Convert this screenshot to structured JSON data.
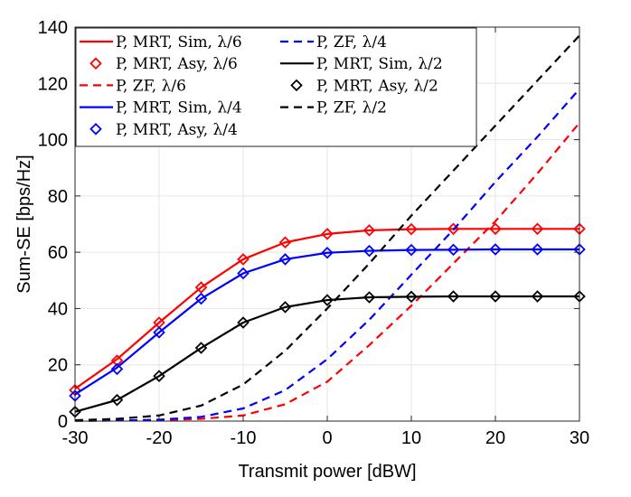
{
  "chart_data": {
    "type": "line",
    "title": "",
    "xlabel": "Transmit power [dBW]",
    "ylabel": "Sum-SE [bps/Hz]",
    "xlim": [
      -30,
      30
    ],
    "ylim": [
      0,
      140
    ],
    "xticks": [
      -30,
      -20,
      -10,
      0,
      10,
      20,
      30
    ],
    "yticks": [
      0,
      20,
      40,
      60,
      80,
      100,
      120,
      140
    ],
    "grid": true,
    "legend_position": "top-left",
    "series": [
      {
        "name": "P, MRT, Sim, λ/6",
        "color": "#ff0000",
        "style": "solid",
        "marker": "none",
        "x": [
          -30,
          -25,
          -20,
          -15,
          -10,
          -5,
          0,
          5,
          10,
          15,
          20,
          25,
          30
        ],
        "y": [
          11.5,
          22,
          35,
          47.5,
          57.5,
          63.5,
          66.5,
          67.8,
          68.2,
          68.3,
          68.3,
          68.3,
          68.3
        ]
      },
      {
        "name": "P, MRT, Asy, λ/6",
        "color": "#ff0000",
        "style": "none",
        "marker": "diamond",
        "x": [
          -30,
          -25,
          -20,
          -15,
          -10,
          -5,
          0,
          5,
          10,
          15,
          20,
          25,
          30
        ],
        "y": [
          11,
          21.5,
          35,
          47.5,
          57.5,
          63.5,
          66.5,
          67.8,
          68.2,
          68.3,
          68.3,
          68.3,
          68.3
        ]
      },
      {
        "name": "P, ZF, λ/6",
        "color": "#ff0000",
        "style": "dashed",
        "marker": "none",
        "x": [
          -30,
          -25,
          -20,
          -15,
          -10,
          -5,
          0,
          5,
          10,
          15,
          20,
          25,
          30
        ],
        "y": [
          0.1,
          0.2,
          0.3,
          0.8,
          2,
          6,
          14,
          27,
          41,
          56,
          71,
          88,
          106
        ]
      },
      {
        "name": "P, MRT, Sim, λ/4",
        "color": "#0000ff",
        "style": "solid",
        "marker": "none",
        "x": [
          -30,
          -25,
          -20,
          -15,
          -10,
          -5,
          0,
          5,
          10,
          15,
          20,
          25,
          30
        ],
        "y": [
          9.5,
          19,
          31.5,
          43.5,
          52.5,
          57.5,
          59.8,
          60.5,
          60.8,
          60.9,
          61,
          61,
          61
        ]
      },
      {
        "name": "P, MRT, Asy, λ/4",
        "color": "#0000ff",
        "style": "none",
        "marker": "diamond",
        "x": [
          -30,
          -25,
          -20,
          -15,
          -10,
          -5,
          0,
          5,
          10,
          15,
          20,
          25,
          30
        ],
        "y": [
          9,
          18.5,
          31.5,
          43.5,
          52.5,
          57.5,
          59.8,
          60.5,
          60.8,
          60.9,
          61,
          61,
          61
        ]
      },
      {
        "name": "P, ZF, λ/4",
        "color": "#0000ff",
        "style": "dashed",
        "marker": "none",
        "x": [
          -30,
          -25,
          -20,
          -15,
          -10,
          -5,
          0,
          5,
          10,
          15,
          20,
          25,
          30
        ],
        "y": [
          0.1,
          0.2,
          0.5,
          1.5,
          4.5,
          11,
          22,
          36,
          52,
          68,
          85,
          101,
          118
        ]
      },
      {
        "name": "P, MRT, Sim, λ/2",
        "color": "#000000",
        "style": "solid",
        "marker": "none",
        "x": [
          -30,
          -25,
          -20,
          -15,
          -10,
          -5,
          0,
          5,
          10,
          15,
          20,
          25,
          30
        ],
        "y": [
          3.3,
          7.5,
          16,
          26,
          35,
          40.5,
          43,
          44,
          44.2,
          44.3,
          44.3,
          44.3,
          44.3
        ]
      },
      {
        "name": "P, MRT, Asy, λ/2",
        "color": "#000000",
        "style": "none",
        "marker": "diamond",
        "x": [
          -30,
          -25,
          -20,
          -15,
          -10,
          -5,
          0,
          5,
          10,
          15,
          20,
          25,
          30
        ],
        "y": [
          3.3,
          7.5,
          16,
          26,
          35,
          40.5,
          43,
          44,
          44.2,
          44.3,
          44.3,
          44.3,
          44.3
        ]
      },
      {
        "name": "P, ZF, λ/2",
        "color": "#000000",
        "style": "dashed",
        "marker": "none",
        "x": [
          -30,
          -25,
          -20,
          -15,
          -10,
          -5,
          0,
          5,
          10,
          15,
          20,
          25,
          30
        ],
        "y": [
          0.3,
          0.8,
          2,
          5.5,
          13,
          25,
          40,
          56,
          73,
          89,
          105,
          121,
          137
        ]
      }
    ],
    "legend": [
      {
        "name": "P, MRT, Sim, λ/6",
        "color": "#ff0000",
        "style": "solid",
        "marker": "none"
      },
      {
        "name": "P, MRT, Asy, λ/6",
        "color": "#ff0000",
        "style": "none",
        "marker": "diamond"
      },
      {
        "name": "P, ZF, λ/6",
        "color": "#ff0000",
        "style": "dashed",
        "marker": "none"
      },
      {
        "name": "P, MRT, Sim, λ/4",
        "color": "#0000ff",
        "style": "solid",
        "marker": "none"
      },
      {
        "name": "P, MRT, Asy, λ/4",
        "color": "#0000ff",
        "style": "none",
        "marker": "diamond"
      },
      {
        "name": "P, ZF, λ/4",
        "color": "#0000ff",
        "style": "dashed",
        "marker": "none"
      },
      {
        "name": "P, MRT, Sim, λ/2",
        "color": "#000000",
        "style": "solid",
        "marker": "none"
      },
      {
        "name": "P, MRT, Asy, λ/2",
        "color": "#000000",
        "style": "none",
        "marker": "diamond"
      },
      {
        "name": "P, ZF, λ/2",
        "color": "#000000",
        "style": "dashed",
        "marker": "none"
      }
    ]
  }
}
